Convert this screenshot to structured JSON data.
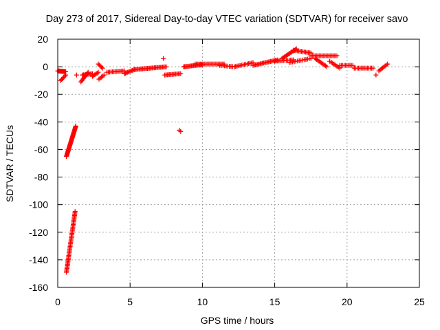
{
  "chart_data": {
    "type": "scatter",
    "title": "Day 273 of 2017, Sidereal Day-to-day VTEC variation (SDTVAR) for receiver savo",
    "xlabel": "GPS time / hours",
    "ylabel": "SDTVAR / TECUs",
    "xlim": [
      0,
      25
    ],
    "ylim": [
      -160,
      20
    ],
    "xticks": [
      0,
      5,
      10,
      15,
      20,
      25
    ],
    "yticks": [
      20,
      0,
      -20,
      -40,
      -60,
      -80,
      -100,
      -120,
      -140,
      -160
    ],
    "grid": true,
    "marker": "+",
    "series": [
      {
        "name": "SDTVAR",
        "color": "#ff0000",
        "segments": [
          {
            "x0": 0.0,
            "y0": -3,
            "x1": 0.55,
            "y1": -3.5,
            "n": 18
          },
          {
            "x0": 0.2,
            "y0": -10,
            "x1": 0.55,
            "y1": -6,
            "n": 6
          },
          {
            "x0": 0.6,
            "y0": -65,
            "x1": 1.25,
            "y1": -43,
            "n": 40
          },
          {
            "x0": 0.6,
            "y0": -149,
            "x1": 1.2,
            "y1": -105,
            "n": 48
          },
          {
            "x0": 1.6,
            "y0": -11,
            "x1": 2.1,
            "y1": -4,
            "n": 10
          },
          {
            "x0": 1.7,
            "y0": -6,
            "x1": 2.4,
            "y1": -5,
            "n": 10
          },
          {
            "x0": 2.4,
            "y0": -7,
            "x1": 2.8,
            "y1": -4,
            "n": 6
          },
          {
            "x0": 2.8,
            "y0": 2,
            "x1": 3.1,
            "y1": -1,
            "n": 5
          },
          {
            "x0": 2.85,
            "y0": -9,
            "x1": 3.2,
            "y1": -6,
            "n": 5
          },
          {
            "x0": 3.4,
            "y0": -4,
            "x1": 4.6,
            "y1": -3,
            "n": 14
          },
          {
            "x0": 4.6,
            "y0": -5,
            "x1": 5.3,
            "y1": -2,
            "n": 10
          },
          {
            "x0": 5.3,
            "y0": -2,
            "x1": 7.5,
            "y1": 0,
            "n": 28
          },
          {
            "x0": 7.4,
            "y0": -6,
            "x1": 8.5,
            "y1": -5,
            "n": 14
          },
          {
            "x0": 8.7,
            "y0": 0,
            "x1": 10.0,
            "y1": 1.5,
            "n": 18
          },
          {
            "x0": 9.5,
            "y0": 2,
            "x1": 11.5,
            "y1": 2,
            "n": 22
          },
          {
            "x0": 11.2,
            "y0": 1,
            "x1": 12.2,
            "y1": 0,
            "n": 10
          },
          {
            "x0": 12.2,
            "y0": 0,
            "x1": 13.5,
            "y1": 3,
            "n": 14
          },
          {
            "x0": 13.5,
            "y0": 1,
            "x1": 15.2,
            "y1": 5,
            "n": 22
          },
          {
            "x0": 15.0,
            "y0": 4,
            "x1": 16.3,
            "y1": 5,
            "n": 14
          },
          {
            "x0": 15.5,
            "y0": 6,
            "x1": 16.5,
            "y1": 13,
            "n": 14
          },
          {
            "x0": 16.3,
            "y0": 12,
            "x1": 17.5,
            "y1": 10,
            "n": 14
          },
          {
            "x0": 16.0,
            "y0": 3,
            "x1": 17.5,
            "y1": 6,
            "n": 14
          },
          {
            "x0": 17.5,
            "y0": 8,
            "x1": 19.3,
            "y1": 8,
            "n": 20
          },
          {
            "x0": 17.8,
            "y0": 6,
            "x1": 18.6,
            "y1": 0,
            "n": 10
          },
          {
            "x0": 18.8,
            "y0": 4,
            "x1": 19.5,
            "y1": -1,
            "n": 8
          },
          {
            "x0": 19.5,
            "y0": 1,
            "x1": 20.4,
            "y1": 1,
            "n": 10
          },
          {
            "x0": 20.5,
            "y0": -1,
            "x1": 21.8,
            "y1": -1,
            "n": 14
          },
          {
            "x0": 22.2,
            "y0": -3,
            "x1": 22.8,
            "y1": 2,
            "n": 8
          }
        ],
        "points": [
          {
            "x": 1.3,
            "y": -6
          },
          {
            "x": 7.3,
            "y": 6
          },
          {
            "x": 8.4,
            "y": -46
          },
          {
            "x": 8.5,
            "y": -47
          },
          {
            "x": 22.0,
            "y": -6
          }
        ]
      }
    ]
  }
}
